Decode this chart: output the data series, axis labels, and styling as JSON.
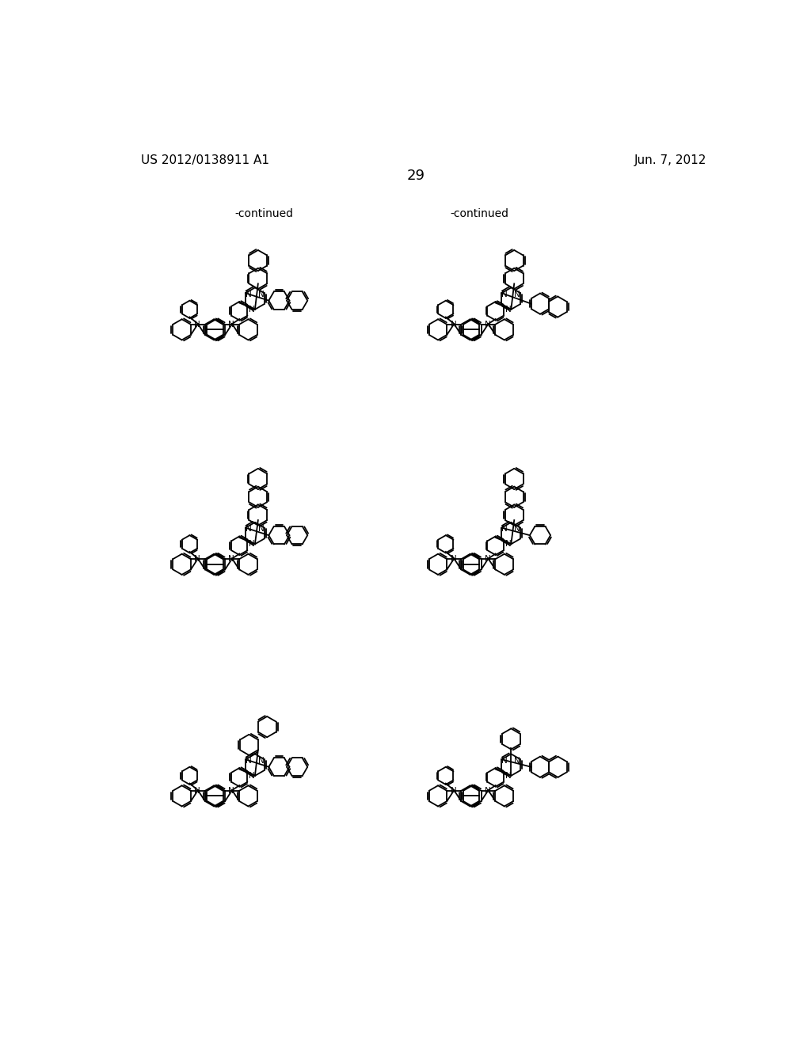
{
  "page_number": "29",
  "patent_number": "US 2012/0138911 A1",
  "date": "Jun. 7, 2012",
  "background_color": "#ffffff",
  "text_color": "#000000",
  "line_color": "#000000",
  "lw": 1.3
}
